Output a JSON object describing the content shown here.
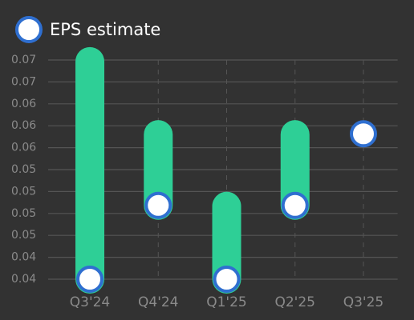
{
  "chart_data": {
    "type": "range",
    "categories": [
      "Q3'24",
      "Q4'24",
      "Q1'25",
      "Q2'25",
      "Q3'25"
    ],
    "series": [
      {
        "name": "EPS estimate",
        "color": "#ffffff",
        "border": "#2f6fd0",
        "values": [
          0.0392,
          0.0493,
          0.0392,
          0.0493,
          0.0591
        ]
      }
    ],
    "actual": {
      "color": "#2ecf96",
      "values": [
        0.069,
        0.059,
        0.0492,
        0.059,
        null
      ]
    },
    "ylim": [
      0.0392,
      0.0692
    ],
    "yticks": [
      {
        "value": 0.0392,
        "label": "0.04"
      },
      {
        "value": 0.0422,
        "label": "0.04"
      },
      {
        "value": 0.0452,
        "label": "0.05"
      },
      {
        "value": 0.0482,
        "label": "0.05"
      },
      {
        "value": 0.0512,
        "label": "0.05"
      },
      {
        "value": 0.0542,
        "label": "0.05"
      },
      {
        "value": 0.0572,
        "label": "0.06"
      },
      {
        "value": 0.0602,
        "label": "0.06"
      },
      {
        "value": 0.0632,
        "label": "0.06"
      },
      {
        "value": 0.0662,
        "label": "0.07"
      },
      {
        "value": 0.0692,
        "label": "0.07"
      }
    ],
    "grid": true
  }
}
